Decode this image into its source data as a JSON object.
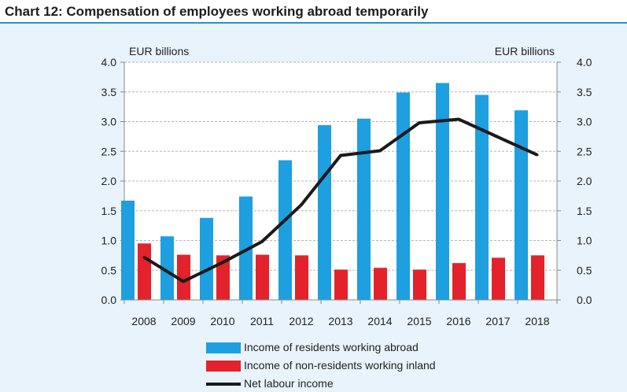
{
  "chart_data": {
    "type": "bar",
    "title": "Chart 12: Compensation of employees working abroad temporarily",
    "y_unit_left": "EUR billions",
    "y_unit_right": "EUR billions",
    "ylim": [
      0,
      4
    ],
    "yticks": [
      "0.0",
      "0.5",
      "1.0",
      "1.5",
      "2.0",
      "2.5",
      "3.0",
      "3.5",
      "4.0"
    ],
    "grid": true,
    "legend_position": "bottom",
    "categories": [
      "2008",
      "2009",
      "2010",
      "2011",
      "2012",
      "2013",
      "2014",
      "2015",
      "2016",
      "2017",
      "2018"
    ],
    "series": [
      {
        "name": "Income of residents working abroad",
        "type": "bar",
        "color": "#1e9fe0",
        "values": [
          1.67,
          1.07,
          1.38,
          1.74,
          2.35,
          2.94,
          3.05,
          3.49,
          3.65,
          3.45,
          3.19
        ]
      },
      {
        "name": "Income of non-residents working inland",
        "type": "bar",
        "color": "#e3222b",
        "values": [
          0.95,
          0.76,
          0.75,
          0.76,
          0.75,
          0.51,
          0.54,
          0.51,
          0.62,
          0.71,
          0.75
        ]
      },
      {
        "name": "Net labour income",
        "type": "line",
        "color": "#1a1a1a",
        "values": [
          0.72,
          0.31,
          0.63,
          0.98,
          1.6,
          2.43,
          2.51,
          2.98,
          3.04,
          2.74,
          2.44
        ]
      }
    ]
  }
}
